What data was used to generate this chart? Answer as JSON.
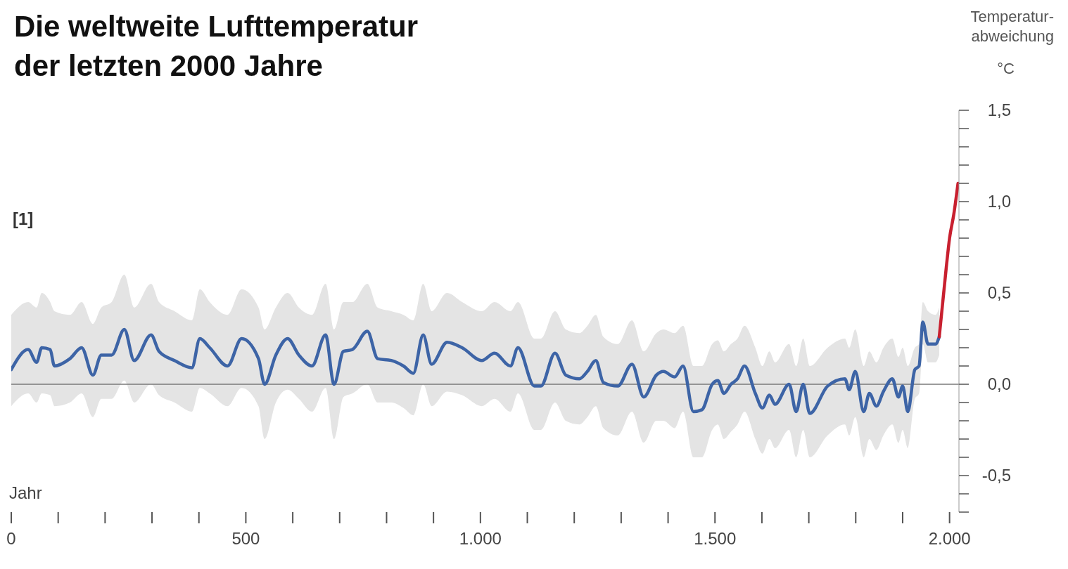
{
  "chart_data": {
    "type": "line",
    "title": "Die weltweite Lufttemperatur\nder letzten 2000 Jahre",
    "xlabel": "Jahr",
    "ylabel": "Temperatur-\nabweichung\n°C",
    "annotations": [
      "[1]"
    ],
    "xlim": [
      0,
      2020
    ],
    "xticks": [
      0,
      {
        "value": 100,
        "label": null
      },
      {
        "value": 200,
        "label": null
      },
      {
        "value": 300,
        "label": null
      },
      {
        "value": 400,
        "label": null
      },
      500,
      {
        "value": 600,
        "label": null
      },
      {
        "value": 700,
        "label": null
      },
      {
        "value": 800,
        "label": null
      },
      {
        "value": 900,
        "label": null
      },
      {
        "value": 1000,
        "label": "1.000"
      },
      {
        "value": 1100,
        "label": null
      },
      {
        "value": 1200,
        "label": null
      },
      {
        "value": 1300,
        "label": null
      },
      {
        "value": 1400,
        "label": null
      },
      {
        "value": 1500,
        "label": "1.500"
      },
      {
        "value": 1600,
        "label": null
      },
      {
        "value": 1700,
        "label": null
      },
      {
        "value": 1800,
        "label": null
      },
      {
        "value": 1900,
        "label": null
      },
      {
        "value": 2000,
        "label": "2.000"
      }
    ],
    "ylim": [
      -0.7,
      1.5
    ],
    "yticks": [
      {
        "value": -0.7,
        "label": null
      },
      {
        "value": -0.6,
        "label": null
      },
      {
        "value": -0.5,
        "label": "-0,5"
      },
      {
        "value": -0.4,
        "label": null
      },
      {
        "value": -0.3,
        "label": null
      },
      {
        "value": -0.2,
        "label": null
      },
      {
        "value": -0.1,
        "label": null
      },
      {
        "value": 0,
        "label": "0,0"
      },
      {
        "value": 0.1,
        "label": null
      },
      {
        "value": 0.2,
        "label": null
      },
      {
        "value": 0.3,
        "label": null
      },
      {
        "value": 0.4,
        "label": null
      },
      {
        "value": 0.5,
        "label": "0,5"
      },
      {
        "value": 0.6,
        "label": null
      },
      {
        "value": 0.7,
        "label": null
      },
      {
        "value": 0.8,
        "label": null
      },
      {
        "value": 0.9,
        "label": null
      },
      {
        "value": 1,
        "label": "1,0"
      },
      {
        "value": 1.1,
        "label": null
      },
      {
        "value": 1.2,
        "label": null
      },
      {
        "value": 1.3,
        "label": null
      },
      {
        "value": 1.4,
        "label": null
      },
      {
        "value": 1.5,
        "label": "1,5"
      }
    ],
    "ref_lines": [
      {
        "axis": "y",
        "value": 0,
        "color": "#7a7a7a"
      }
    ],
    "series": [
      {
        "color": "#3d64a6",
        "x": [
          0,
          36,
          54,
          65,
          83,
          92,
          125,
          150,
          174,
          192,
          214,
          241,
          262,
          298,
          315,
          348,
          385,
          402,
          423,
          461,
          491,
          527,
          540,
          564,
          589,
          613,
          641,
          670,
          688,
          708,
          727,
          759,
          781,
          810,
          836,
          857,
          878,
          896,
          929,
          961,
          1003,
          1030,
          1064,
          1080,
          1115,
          1129,
          1159,
          1182,
          1211,
          1228,
          1246,
          1262,
          1293,
          1323,
          1348,
          1375,
          1390,
          1414,
          1432,
          1454,
          1472,
          1494,
          1506,
          1519,
          1534,
          1548,
          1563,
          1586,
          1601,
          1616,
          1628,
          1658,
          1673,
          1688,
          1702,
          1740,
          1777,
          1786,
          1799,
          1817,
          1829,
          1844,
          1859,
          1878,
          1891,
          1900,
          1911,
          1926,
          1935,
          1943,
          1954,
          1970,
          1978
        ],
        "values": [
          0.08,
          0.19,
          0.12,
          0.2,
          0.19,
          0.1,
          0.14,
          0.2,
          0.05,
          0.16,
          0.16,
          0.3,
          0.13,
          0.27,
          0.18,
          0.13,
          0.09,
          0.25,
          0.2,
          0.1,
          0.25,
          0.14,
          0,
          0.16,
          0.25,
          0.16,
          0.1,
          0.27,
          0,
          0.18,
          0.19,
          0.29,
          0.14,
          0.13,
          0.1,
          0.06,
          0.27,
          0.11,
          0.23,
          0.2,
          0.13,
          0.17,
          0.1,
          0.2,
          -0.01,
          -0.01,
          0.17,
          0.05,
          0.03,
          0.07,
          0.13,
          0.01,
          -0.01,
          0.11,
          -0.07,
          0.05,
          0.07,
          0.04,
          0.1,
          -0.15,
          -0.14,
          0,
          0.02,
          -0.05,
          0,
          0.03,
          0.1,
          -0.05,
          -0.13,
          -0.06,
          -0.11,
          0,
          -0.15,
          0,
          -0.16,
          -0.01,
          0.03,
          -0.03,
          0.07,
          -0.15,
          -0.05,
          -0.12,
          -0.04,
          0.03,
          -0.07,
          -0.01,
          -0.15,
          0.08,
          0.1,
          0.34,
          0.22,
          0.22,
          0.26
        ],
        "upper": [
          0.38,
          0.45,
          0.42,
          0.5,
          0.45,
          0.4,
          0.38,
          0.45,
          0.33,
          0.42,
          0.45,
          0.6,
          0.42,
          0.55,
          0.45,
          0.4,
          0.35,
          0.52,
          0.45,
          0.38,
          0.52,
          0.42,
          0.3,
          0.42,
          0.5,
          0.42,
          0.38,
          0.55,
          0.3,
          0.45,
          0.45,
          0.55,
          0.42,
          0.4,
          0.38,
          0.35,
          0.55,
          0.4,
          0.5,
          0.45,
          0.4,
          0.45,
          0.4,
          0.45,
          0.25,
          0.25,
          0.4,
          0.3,
          0.28,
          0.32,
          0.38,
          0.26,
          0.22,
          0.35,
          0.18,
          0.28,
          0.3,
          0.28,
          0.32,
          0.1,
          0.1,
          0.22,
          0.24,
          0.18,
          0.22,
          0.25,
          0.32,
          0.2,
          0.1,
          0.18,
          0.12,
          0.22,
          0.1,
          0.25,
          0.1,
          0.2,
          0.25,
          0.2,
          0.3,
          0.1,
          0.18,
          0.12,
          0.2,
          0.25,
          0.15,
          0.2,
          0.1,
          0.2,
          0.22,
          0.45,
          0.4,
          0.38,
          0.42
        ],
        "lower": [
          -0.12,
          -0.05,
          -0.1,
          -0.05,
          -0.06,
          -0.12,
          -0.1,
          -0.05,
          -0.18,
          -0.08,
          -0.08,
          0.02,
          -0.1,
          0,
          -0.06,
          -0.1,
          -0.15,
          -0.02,
          -0.05,
          -0.12,
          -0.02,
          -0.12,
          -0.3,
          -0.1,
          -0.03,
          -0.08,
          -0.15,
          -0.02,
          -0.3,
          -0.07,
          -0.05,
          0,
          -0.1,
          -0.1,
          -0.13,
          -0.17,
          0,
          -0.12,
          -0.04,
          -0.06,
          -0.12,
          -0.08,
          -0.15,
          -0.05,
          -0.25,
          -0.25,
          -0.1,
          -0.2,
          -0.22,
          -0.18,
          -0.12,
          -0.24,
          -0.28,
          -0.15,
          -0.32,
          -0.2,
          -0.2,
          -0.24,
          -0.15,
          -0.4,
          -0.4,
          -0.25,
          -0.22,
          -0.3,
          -0.26,
          -0.22,
          -0.15,
          -0.3,
          -0.38,
          -0.3,
          -0.35,
          -0.25,
          -0.4,
          -0.25,
          -0.4,
          -0.28,
          -0.22,
          -0.28,
          -0.18,
          -0.4,
          -0.3,
          -0.36,
          -0.28,
          -0.22,
          -0.32,
          -0.25,
          -0.35,
          -0.08,
          -0.05,
          0.22,
          0.12,
          0.12,
          0.16
        ]
      },
      {
        "color": "#c8202f",
        "x": [
          1978,
          1993,
          2000,
          2009,
          2018
        ],
        "values": [
          0.26,
          0.64,
          0.8,
          0.93,
          1.1
        ]
      }
    ]
  }
}
